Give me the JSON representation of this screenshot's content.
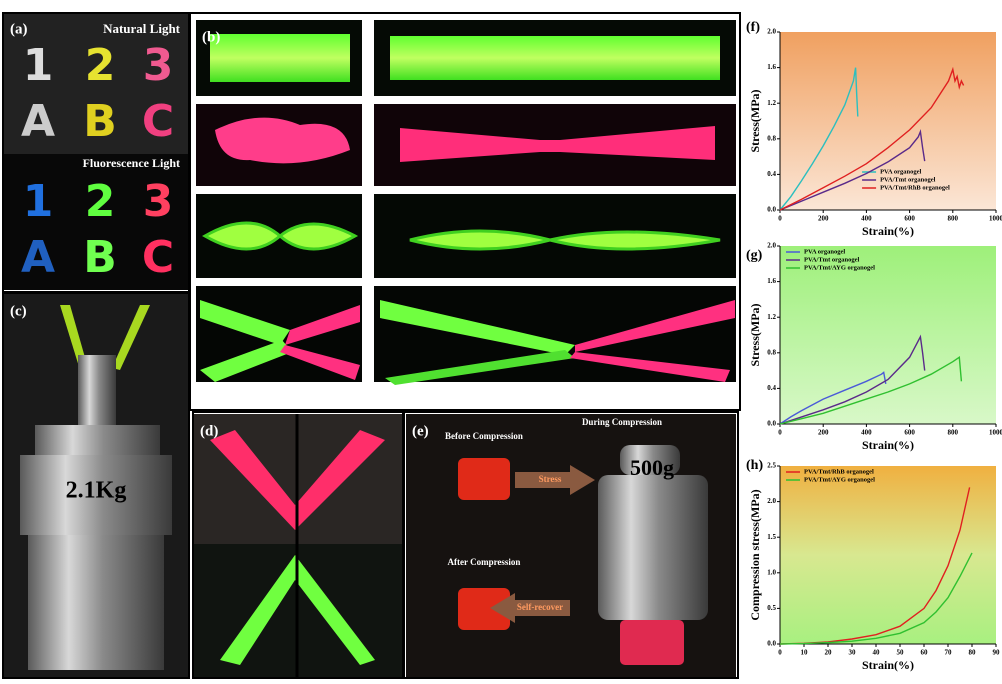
{
  "panels": {
    "a": {
      "label": "(a)",
      "natural": "Natural Light",
      "fluorescence": "Fluorescence Light",
      "glyphs": [
        "1",
        "2",
        "3",
        "A",
        "B",
        "C"
      ]
    },
    "b": {
      "label": "(b)"
    },
    "c": {
      "label": "(c)",
      "weight": "2.1Kg"
    },
    "d": {
      "label": "(d)"
    },
    "e": {
      "label": "(e)",
      "before": "Before Compression",
      "during": "During Compression",
      "stress": "Stress",
      "weight": "500g",
      "after": "After Compression",
      "recover": "Self-recover"
    }
  },
  "chart_data": [
    {
      "type": "line",
      "panel_label": "(f)",
      "xlabel": "Strain(%)",
      "ylabel": "Stress(MPa)",
      "xlim": [
        0,
        1000
      ],
      "ylim": [
        0,
        2.0
      ],
      "xticks": [
        0,
        200,
        400,
        600,
        800,
        1000
      ],
      "yticks": [
        {
          "value": 0,
          "label": "0.0"
        },
        0.4,
        0.8,
        1.2,
        1.6,
        {
          "value": 2,
          "label": "2.0"
        }
      ],
      "legend": "lower right",
      "series": [
        {
          "name": "PVA organogel",
          "color": "#2bbfbf",
          "x": [
            0,
            50,
            100,
            150,
            200,
            250,
            300,
            340,
            350,
            355,
            360
          ],
          "values": [
            0,
            0.15,
            0.33,
            0.52,
            0.72,
            0.94,
            1.18,
            1.45,
            1.6,
            1.3,
            1.05
          ]
        },
        {
          "name": "PVA/Tmt organogel",
          "color": "#5a2a8a",
          "x": [
            0,
            100,
            200,
            300,
            400,
            500,
            600,
            640,
            650,
            660,
            670
          ],
          "values": [
            0,
            0.1,
            0.2,
            0.3,
            0.41,
            0.54,
            0.7,
            0.82,
            0.88,
            0.7,
            0.55
          ]
        },
        {
          "name": "PVA/Tmt/RhB organogel",
          "color": "#e02020",
          "x": [
            0,
            100,
            200,
            300,
            400,
            500,
            600,
            700,
            780,
            800,
            810,
            820,
            830,
            840,
            850
          ],
          "values": [
            0,
            0.12,
            0.25,
            0.38,
            0.52,
            0.7,
            0.9,
            1.15,
            1.45,
            1.58,
            1.45,
            1.5,
            1.38,
            1.45,
            1.4
          ]
        }
      ]
    },
    {
      "type": "line",
      "panel_label": "(g)",
      "xlabel": "Strain(%)",
      "ylabel": "Stress(MPa)",
      "xlim": [
        0,
        1000
      ],
      "ylim": [
        0,
        2.0
      ],
      "xticks": [
        0,
        200,
        400,
        600,
        800,
        1000
      ],
      "yticks": [
        {
          "value": 0,
          "label": "0.0"
        },
        0.4,
        0.8,
        1.2,
        1.6,
        {
          "value": 2,
          "label": "2.0"
        }
      ],
      "legend": "upper left",
      "series": [
        {
          "name": "PVA organogel",
          "color": "#4a5ad8",
          "x": [
            0,
            50,
            100,
            200,
            300,
            400,
            470,
            480,
            490
          ],
          "values": [
            0,
            0.08,
            0.15,
            0.28,
            0.38,
            0.48,
            0.56,
            0.58,
            0.45
          ]
        },
        {
          "name": "PVA/Tmt organogel",
          "color": "#5a2a8a",
          "x": [
            0,
            100,
            200,
            300,
            400,
            500,
            600,
            650,
            660,
            670
          ],
          "values": [
            0,
            0.08,
            0.16,
            0.25,
            0.36,
            0.5,
            0.75,
            0.98,
            0.8,
            0.6
          ]
        },
        {
          "name": "PVA/Tmt/AYG organogel",
          "color": "#30c030",
          "x": [
            0,
            100,
            200,
            300,
            400,
            500,
            600,
            700,
            800,
            830,
            840
          ],
          "values": [
            0,
            0.06,
            0.12,
            0.2,
            0.28,
            0.36,
            0.45,
            0.56,
            0.7,
            0.75,
            0.48
          ]
        }
      ]
    },
    {
      "type": "line",
      "panel_label": "(h)",
      "xlabel": "Strain(%)",
      "ylabel": "Compression stress(MPa)",
      "xlim": [
        0,
        90
      ],
      "ylim": [
        0,
        2.5
      ],
      "xticks": [
        0,
        10,
        20,
        30,
        40,
        50,
        60,
        70,
        80,
        90
      ],
      "yticks": [
        {
          "value": 0,
          "label": "0.0"
        },
        0.5,
        {
          "value": 1,
          "label": "1.0"
        },
        1.5,
        {
          "value": 2,
          "label": "2.0"
        },
        2.5
      ],
      "legend": "upper left",
      "series": [
        {
          "name": "PVA/Tmt/RhB organogel",
          "color": "#e02020",
          "x": [
            0,
            10,
            20,
            30,
            40,
            50,
            60,
            65,
            70,
            75,
            79
          ],
          "values": [
            0,
            0.01,
            0.03,
            0.07,
            0.13,
            0.25,
            0.5,
            0.75,
            1.1,
            1.6,
            2.2
          ]
        },
        {
          "name": "PVA/Tmt/AYG organogel",
          "color": "#30c030",
          "x": [
            0,
            10,
            20,
            30,
            40,
            50,
            60,
            65,
            70,
            75,
            80
          ],
          "values": [
            0,
            0.005,
            0.02,
            0.04,
            0.08,
            0.15,
            0.3,
            0.45,
            0.65,
            0.95,
            1.28
          ]
        }
      ]
    }
  ]
}
